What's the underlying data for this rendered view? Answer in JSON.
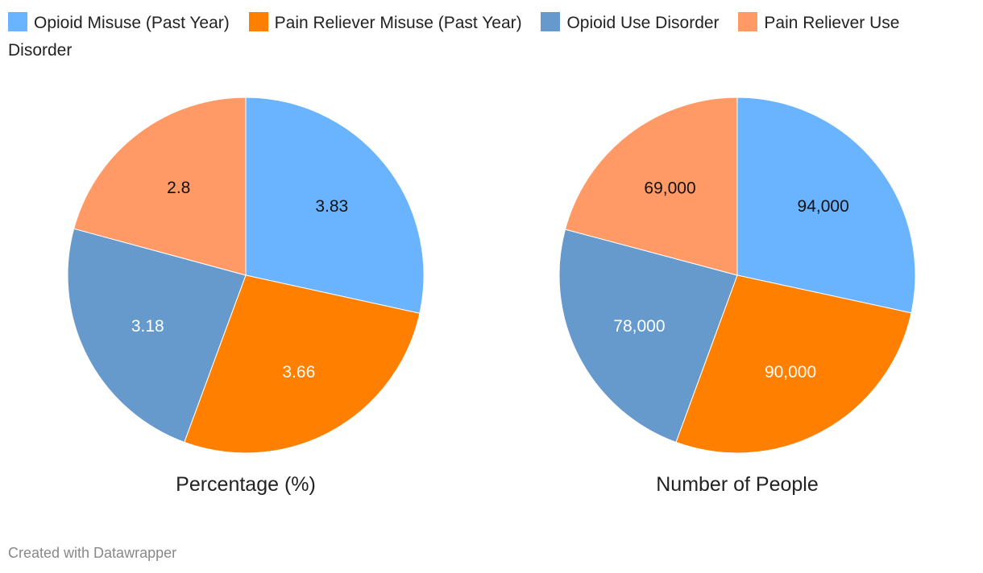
{
  "chart_data": [
    {
      "type": "pie",
      "title": "Percentage (%)",
      "categories": [
        "Opioid Misuse (Past Year)",
        "Pain Reliever Misuse (Past Year)",
        "Opioid Use Disorder",
        "Pain Reliever Use Disorder"
      ],
      "values": [
        3.83,
        3.66,
        3.18,
        2.8
      ],
      "labels": [
        "3.83",
        "3.66",
        "3.18",
        "2.8"
      ]
    },
    {
      "type": "pie",
      "title": "Number of People",
      "categories": [
        "Opioid Misuse (Past Year)",
        "Pain Reliever Misuse (Past Year)",
        "Opioid Use Disorder",
        "Pain Reliever Use Disorder"
      ],
      "values": [
        94000,
        90000,
        78000,
        69000
      ],
      "labels": [
        "94,000",
        "90,000",
        "78,000",
        "69,000"
      ]
    }
  ],
  "legend": {
    "placement": "top-left",
    "items": [
      {
        "label": "Opioid Misuse (Past Year)",
        "color": "#69b3ff"
      },
      {
        "label": "Pain Reliever Misuse (Past Year)",
        "color": "#ff7f00"
      },
      {
        "label": "Opioid Use Disorder",
        "color": "#6699cc"
      },
      {
        "label": "Pain Reliever Use Disorder",
        "color": "#ff9966"
      }
    ]
  },
  "label_colors": [
    "#111111",
    "#ffffff",
    "#ffffff",
    "#111111"
  ],
  "footer": "Created with Datawrapper"
}
